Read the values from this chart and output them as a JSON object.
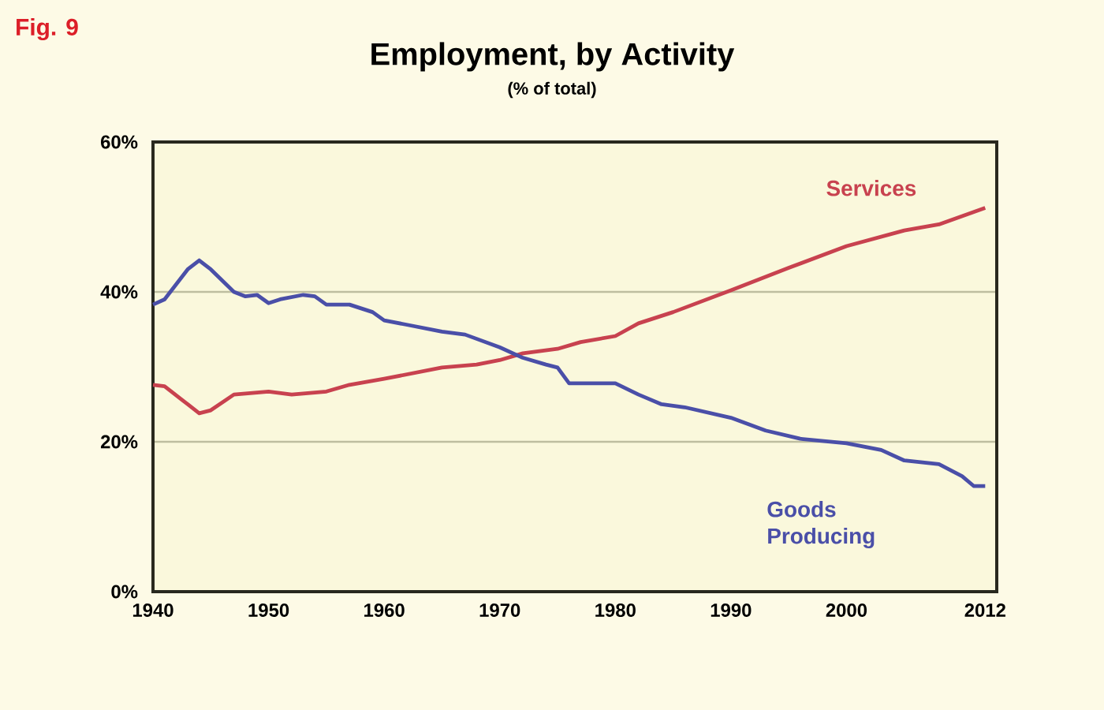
{
  "chart_data": {
    "type": "line",
    "title": "Employment, by Activity",
    "subtitle": "(% of total)",
    "annotations": [
      "Fig. 9"
    ],
    "xlim": [
      1940,
      2013
    ],
    "xticks": [
      1940,
      1950,
      1960,
      1970,
      1980,
      1990,
      2000,
      2012
    ],
    "ylim": [
      0,
      60
    ],
    "yticks": [
      {
        "value": 0,
        "label": "0%"
      },
      {
        "value": 20,
        "label": "20%"
      },
      {
        "value": 40,
        "label": "40%"
      },
      {
        "value": 60,
        "label": "60%"
      }
    ],
    "grid": "y",
    "marker": "none",
    "line_style": "solid",
    "series": [
      {
        "name": "Services",
        "color": "#c8424f",
        "x": [
          1940,
          1941,
          1943,
          1944,
          1945,
          1947,
          1950,
          1952,
          1955,
          1957,
          1960,
          1965,
          1968,
          1970,
          1972,
          1975,
          1977,
          1980,
          1982,
          1985,
          1990,
          1995,
          2000,
          2005,
          2008,
          2010,
          2012
        ],
        "values": [
          27.6,
          27.4,
          25,
          23.8,
          24.2,
          26.3,
          26.7,
          26.3,
          26.7,
          27.6,
          28.4,
          29.9,
          30.3,
          30.9,
          31.8,
          32.4,
          33.3,
          34.1,
          35.8,
          37.3,
          40.2,
          43.2,
          46.1,
          48.2,
          49,
          50.1,
          51.2
        ]
      },
      {
        "name": "Goods Producing",
        "color": "#4a4fa8",
        "x": [
          1940,
          1941,
          1943,
          1944,
          1945,
          1947,
          1948,
          1949,
          1950,
          1951,
          1953,
          1954,
          1955,
          1957,
          1959,
          1960,
          1962,
          1965,
          1967,
          1970,
          1972,
          1974,
          1975,
          1976,
          1980,
          1982,
          1984,
          1986,
          1990,
          1993,
          1996,
          2000,
          2003,
          2005,
          2008,
          2010,
          2011,
          2012
        ],
        "values": [
          38.3,
          39,
          43,
          44.2,
          43,
          40,
          39.4,
          39.6,
          38.5,
          39,
          39.6,
          39.4,
          38.3,
          38.3,
          37.3,
          36.2,
          35.6,
          34.7,
          34.3,
          32.6,
          31.2,
          30.3,
          29.9,
          27.8,
          27.8,
          26.3,
          25,
          24.6,
          23.2,
          21.5,
          20.4,
          19.8,
          18.9,
          17.5,
          17,
          15.4,
          14.1,
          14.1
        ]
      }
    ]
  }
}
